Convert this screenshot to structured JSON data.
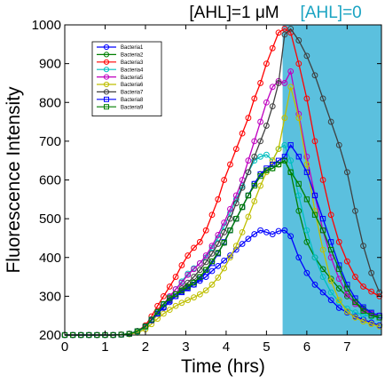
{
  "chart_data": {
    "type": "line",
    "xlabel": "Time (hrs)",
    "ylabel": "Fluorescence Intensity",
    "xlim": [
      0,
      7.85
    ],
    "ylim": [
      200,
      1000
    ],
    "xticks": [
      "0",
      "1",
      "2",
      "3",
      "4",
      "5",
      "6",
      "7"
    ],
    "yticks": [
      "200",
      "300",
      "400",
      "500",
      "600",
      "700",
      "800",
      "900",
      "1000"
    ],
    "grid": false,
    "legend_position": "top-left",
    "shaded_region": {
      "x_start": 5.4,
      "x_end": 7.85,
      "color": "#5bc0de"
    },
    "annotations": [
      {
        "text": "[AHL]=1 μM",
        "x": 4.2,
        "y": 1000,
        "color": "#000000"
      },
      {
        "text": "[AHL]=0",
        "x": 6.6,
        "y": 1000,
        "color": "#1aa3c2"
      }
    ],
    "x": [
      0,
      0.2,
      0.4,
      0.6,
      0.8,
      1.0,
      1.2,
      1.4,
      1.6,
      1.8,
      2.0,
      2.15,
      2.3,
      2.45,
      2.6,
      2.75,
      2.9,
      3.05,
      3.2,
      3.35,
      3.5,
      3.65,
      3.8,
      3.95,
      4.1,
      4.25,
      4.4,
      4.55,
      4.7,
      4.85,
      5.0,
      5.15,
      5.3,
      5.45,
      5.6,
      5.8,
      6.0,
      6.2,
      6.4,
      6.6,
      6.8,
      7.0,
      7.2,
      7.4,
      7.6,
      7.8
    ],
    "series": [
      {
        "name": "Bacteria1",
        "color": "#0000ff",
        "marker": "circle",
        "values": [
          200,
          200,
          200,
          200,
          200,
          200,
          200,
          201,
          203,
          210,
          222,
          238,
          255,
          270,
          285,
          300,
          312,
          322,
          330,
          340,
          350,
          365,
          378,
          392,
          405,
          420,
          435,
          448,
          460,
          470,
          465,
          460,
          468,
          470,
          455,
          400,
          360,
          330,
          310,
          290,
          270,
          258,
          248,
          240,
          232,
          225
        ]
      },
      {
        "name": "Bacteria2",
        "color": "#007f00",
        "marker": "circle",
        "values": [
          200,
          200,
          200,
          200,
          200,
          200,
          200,
          201,
          203,
          210,
          222,
          240,
          260,
          280,
          295,
          305,
          315,
          325,
          335,
          350,
          368,
          390,
          412,
          438,
          470,
          500,
          530,
          560,
          590,
          615,
          625,
          630,
          640,
          650,
          620,
          520,
          440,
          400,
          370,
          345,
          320,
          300,
          285,
          268,
          255,
          245
        ]
      },
      {
        "name": "Bacteria3",
        "color": "#ff0000",
        "marker": "circle",
        "values": [
          200,
          200,
          200,
          200,
          200,
          200,
          200,
          201,
          203,
          210,
          225,
          248,
          275,
          300,
          325,
          350,
          380,
          405,
          425,
          440,
          470,
          510,
          550,
          600,
          640,
          680,
          720,
          760,
          810,
          850,
          900,
          940,
          980,
          990,
          980,
          900,
          810,
          700,
          600,
          510,
          440,
          390,
          350,
          325,
          312,
          300
        ]
      },
      {
        "name": "Bacteria4",
        "color": "#00bfbf",
        "marker": "circle",
        "values": [
          200,
          200,
          200,
          200,
          200,
          200,
          200,
          201,
          203,
          208,
          220,
          238,
          258,
          278,
          298,
          318,
          338,
          358,
          372,
          385,
          400,
          425,
          450,
          480,
          515,
          550,
          585,
          620,
          650,
          660,
          665,
          650,
          680,
          690,
          650,
          560,
          470,
          400,
          350,
          310,
          285,
          268,
          258,
          252,
          248,
          245
        ]
      },
      {
        "name": "Bacteria5",
        "color": "#bf00bf",
        "marker": "circle",
        "values": [
          200,
          200,
          200,
          200,
          200,
          200,
          200,
          201,
          203,
          210,
          222,
          240,
          260,
          280,
          300,
          318,
          335,
          355,
          370,
          385,
          405,
          430,
          458,
          490,
          525,
          560,
          600,
          650,
          700,
          750,
          800,
          840,
          855,
          850,
          880,
          770,
          660,
          560,
          470,
          400,
          345,
          305,
          280,
          265,
          255,
          250
        ]
      },
      {
        "name": "Bacteria6",
        "color": "#bfbf00",
        "marker": "circle",
        "values": [
          200,
          200,
          200,
          200,
          200,
          200,
          200,
          201,
          202,
          206,
          215,
          228,
          242,
          255,
          265,
          275,
          283,
          290,
          297,
          305,
          315,
          330,
          348,
          372,
          400,
          430,
          465,
          505,
          545,
          585,
          620,
          650,
          680,
          760,
          840,
          760,
          640,
          520,
          420,
          340,
          290,
          260,
          245,
          235,
          228,
          222
        ]
      },
      {
        "name": "Bacteria7",
        "color": "#3f3f3f",
        "marker": "circle",
        "values": [
          200,
          200,
          200,
          200,
          200,
          200,
          200,
          201,
          203,
          210,
          222,
          238,
          255,
          272,
          290,
          305,
          320,
          335,
          350,
          368,
          388,
          410,
          435,
          465,
          500,
          540,
          580,
          620,
          660,
          700,
          740,
          790,
          850,
          975,
          990,
          960,
          920,
          870,
          810,
          750,
          690,
          620,
          520,
          430,
          360,
          310
        ]
      },
      {
        "name": "Bacteria8",
        "color": "#0000ff",
        "marker": "square",
        "values": [
          200,
          200,
          200,
          200,
          200,
          200,
          200,
          201,
          203,
          210,
          222,
          238,
          255,
          272,
          288,
          300,
          310,
          320,
          330,
          345,
          362,
          385,
          410,
          440,
          470,
          500,
          530,
          560,
          590,
          615,
          630,
          640,
          650,
          660,
          690,
          660,
          620,
          560,
          500,
          440,
          380,
          330,
          295,
          272,
          258,
          250
        ]
      },
      {
        "name": "Bacteria9",
        "color": "#007f00",
        "marker": "square",
        "values": [
          200,
          200,
          200,
          200,
          200,
          200,
          200,
          201,
          203,
          210,
          222,
          240,
          260,
          280,
          295,
          305,
          315,
          325,
          335,
          350,
          368,
          390,
          412,
          438,
          470,
          500,
          530,
          560,
          585,
          610,
          625,
          630,
          640,
          650,
          620,
          590,
          550,
          510,
          470,
          420,
          370,
          320,
          285,
          262,
          250,
          245
        ]
      }
    ]
  }
}
